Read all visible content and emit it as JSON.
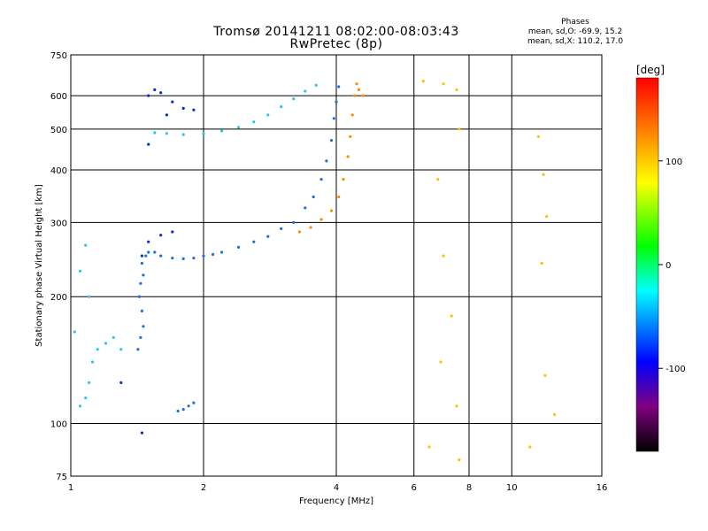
{
  "chart_data": {
    "type": "scatter",
    "title": "Tromsø 20141211 08:02:00-08:03:43",
    "subtitle": "RwPretec (8p)",
    "xlabel": "Frequency [MHz]",
    "ylabel": "Stationary phase Virtual Height [km]",
    "x_scale": "log",
    "y_scale": "log",
    "xlim": [
      1,
      16
    ],
    "ylim": [
      75,
      750
    ],
    "x_ticks": [
      1,
      2,
      4,
      6,
      8,
      10,
      16
    ],
    "y_ticks": [
      75,
      100,
      200,
      300,
      400,
      500,
      600,
      750
    ],
    "grid": true,
    "phase_stats": {
      "header": "Phases",
      "line_o": "mean, sd,O: -69.9, 15.2",
      "line_x": "mean, sd,X: 110.2, 17.0"
    },
    "colorbar": {
      "label": "[deg]",
      "range": [
        -180,
        180
      ],
      "ticks": [
        100,
        0,
        -100
      ],
      "colors": [
        "#ff0000",
        "#ff7f00",
        "#ffff00",
        "#00ff00",
        "#00ffff",
        "#0000ff",
        "#800080",
        "#000000"
      ]
    },
    "series": [
      {
        "color": "#1e6fd8",
        "points": [
          [
            1.42,
            150
          ],
          [
            1.44,
            160
          ],
          [
            1.46,
            170
          ],
          [
            1.45,
            185
          ],
          [
            1.43,
            200
          ],
          [
            1.44,
            215
          ],
          [
            1.46,
            225
          ],
          [
            1.45,
            240
          ],
          [
            1.48,
            250
          ],
          [
            1.5,
            255
          ],
          [
            1.55,
            255
          ],
          [
            1.6,
            250
          ],
          [
            1.7,
            247
          ],
          [
            1.8,
            246
          ],
          [
            1.9,
            247
          ],
          [
            2.0,
            250
          ],
          [
            2.1,
            252
          ],
          [
            2.2,
            255
          ],
          [
            2.4,
            262
          ],
          [
            2.6,
            270
          ],
          [
            2.8,
            278
          ],
          [
            3.0,
            290
          ],
          [
            3.2,
            300
          ],
          [
            3.4,
            325
          ],
          [
            3.55,
            345
          ],
          [
            3.7,
            380
          ],
          [
            3.8,
            420
          ],
          [
            3.9,
            470
          ],
          [
            3.95,
            530
          ],
          [
            4.0,
            580
          ],
          [
            4.05,
            630
          ],
          [
            1.8,
            108
          ],
          [
            1.85,
            110
          ],
          [
            1.9,
            112
          ],
          [
            1.75,
            107
          ]
        ]
      },
      {
        "color": "#2ac7e6",
        "points": [
          [
            1.05,
            110
          ],
          [
            1.08,
            115
          ],
          [
            1.1,
            125
          ],
          [
            1.12,
            140
          ],
          [
            1.15,
            150
          ],
          [
            1.2,
            155
          ],
          [
            1.25,
            160
          ],
          [
            1.3,
            150
          ],
          [
            1.02,
            165
          ],
          [
            1.1,
            200
          ],
          [
            1.05,
            230
          ],
          [
            1.08,
            265
          ],
          [
            1.55,
            490
          ],
          [
            1.65,
            488
          ],
          [
            1.8,
            485
          ],
          [
            2.0,
            488
          ],
          [
            2.2,
            495
          ],
          [
            2.4,
            505
          ],
          [
            2.6,
            520
          ],
          [
            2.8,
            540
          ],
          [
            3.0,
            565
          ],
          [
            3.2,
            590
          ],
          [
            3.4,
            615
          ],
          [
            3.6,
            635
          ]
        ]
      },
      {
        "color": "#0a2fc0",
        "points": [
          [
            1.5,
            600
          ],
          [
            1.55,
            620
          ],
          [
            1.6,
            610
          ],
          [
            1.7,
            580
          ],
          [
            1.8,
            560
          ],
          [
            1.9,
            555
          ],
          [
            1.65,
            540
          ],
          [
            1.5,
            460
          ],
          [
            1.45,
            250
          ],
          [
            1.5,
            270
          ],
          [
            1.6,
            280
          ],
          [
            1.7,
            285
          ],
          [
            1.45,
            95
          ],
          [
            1.3,
            125
          ]
        ]
      },
      {
        "color": "#ff8c00",
        "points": [
          [
            3.3,
            285
          ],
          [
            3.5,
            292
          ],
          [
            3.7,
            305
          ],
          [
            3.9,
            320
          ],
          [
            4.05,
            345
          ],
          [
            4.15,
            380
          ],
          [
            4.25,
            430
          ],
          [
            4.3,
            480
          ],
          [
            4.35,
            540
          ],
          [
            4.4,
            600
          ],
          [
            4.45,
            640
          ],
          [
            4.5,
            620
          ],
          [
            4.6,
            600
          ]
        ]
      },
      {
        "color": "#ffc000",
        "points": [
          [
            6.3,
            650
          ],
          [
            7.0,
            640
          ],
          [
            7.5,
            620
          ],
          [
            7.6,
            500
          ],
          [
            6.8,
            380
          ],
          [
            7.0,
            250
          ],
          [
            7.3,
            180
          ],
          [
            6.9,
            140
          ],
          [
            7.5,
            110
          ],
          [
            6.5,
            88
          ],
          [
            7.6,
            82
          ],
          [
            11.5,
            480
          ],
          [
            11.8,
            390
          ],
          [
            12.0,
            310
          ],
          [
            11.7,
            240
          ],
          [
            11.9,
            130
          ],
          [
            12.5,
            105
          ],
          [
            11.0,
            88
          ]
        ]
      }
    ]
  }
}
